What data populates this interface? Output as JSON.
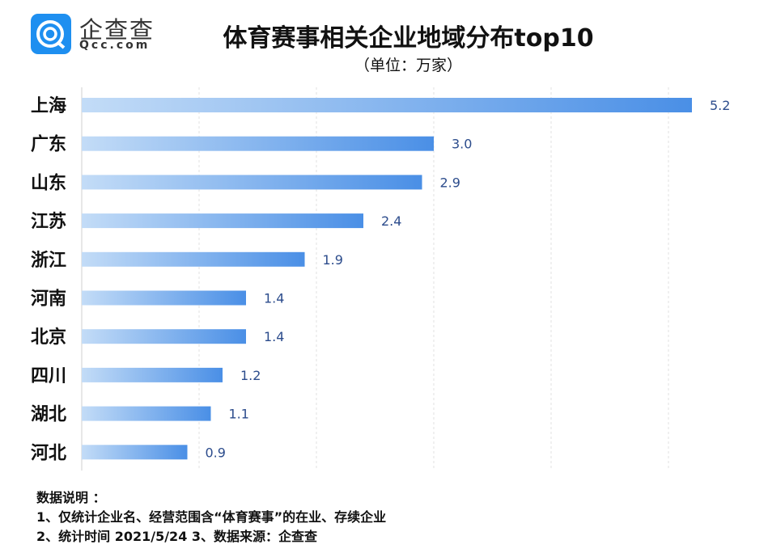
{
  "logo": {
    "name_cn": "企查查",
    "name_en": "Qcc.com"
  },
  "chart_data": {
    "type": "bar",
    "orientation": "horizontal",
    "title": "体育赛事相关企业地域分布top10",
    "subtitle": "（单位：万家）",
    "categories": [
      "上海",
      "广东",
      "山东",
      "江苏",
      "浙江",
      "河南",
      "北京",
      "四川",
      "湖北",
      "河北"
    ],
    "values": [
      5.2,
      3.0,
      2.9,
      2.4,
      1.9,
      1.4,
      1.4,
      1.2,
      1.1,
      0.9
    ],
    "xlim": [
      0,
      5.5
    ],
    "grid": true,
    "colors": {
      "bar_start": "#c3dcf7",
      "bar_end": "#4a8fe6",
      "label": "#2c4c8c"
    }
  },
  "notes": {
    "heading": "数据说明 ：",
    "line1": "1、仅统计企业名、经营范围含“体育赛事”的在业、存续企业",
    "line2": "2、统计时间  2021/5/24    3、数据来源：企查查"
  }
}
